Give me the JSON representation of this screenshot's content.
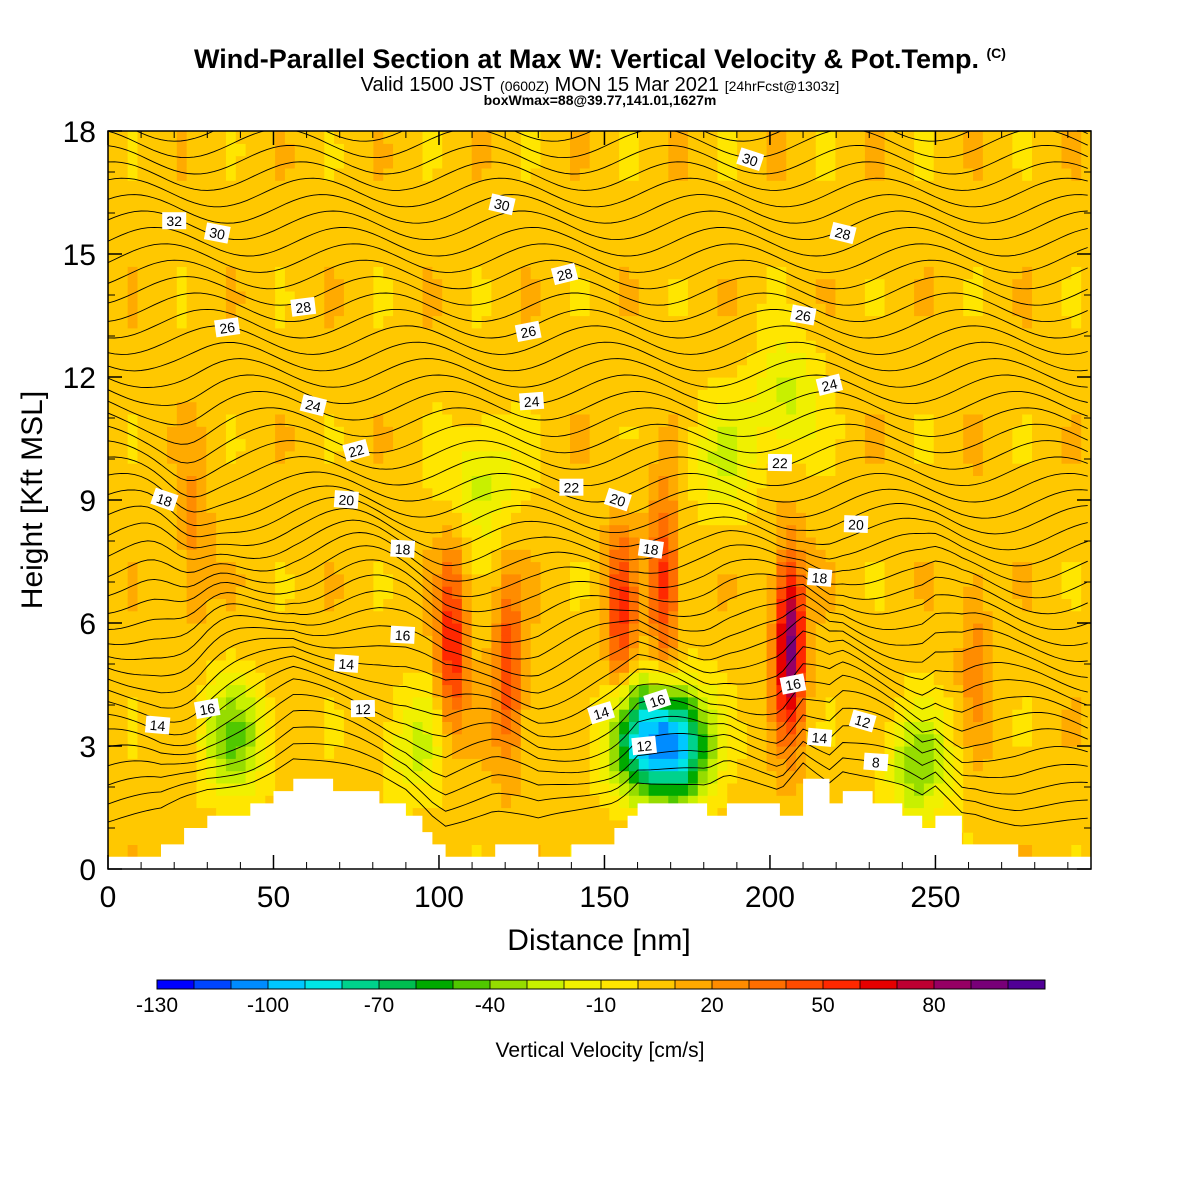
{
  "title": {
    "main": "Wind-Parallel Section at Max W: Vertical Velocity & Pot.Temp.",
    "copyright": "(C)",
    "valid_prefix": "Valid 1500 JST",
    "valid_utc": "(0600Z)",
    "valid_date": "MON 15 Mar 2021",
    "forecast": "[24hrFcst@1303z]",
    "box": "boxWmax=88@39.77,141.01,1627m"
  },
  "colors": {
    "bands": [
      "#0000ff",
      "#0045ff",
      "#008cff",
      "#00c8ff",
      "#00e6e6",
      "#00d28c",
      "#00be50",
      "#00aa00",
      "#50c800",
      "#96dc00",
      "#c8f000",
      "#f0f000",
      "#ffe600",
      "#ffc800",
      "#ffaa00",
      "#ff8c00",
      "#ff6e00",
      "#ff4b00",
      "#ff2800",
      "#e60000",
      "#be0032",
      "#960064",
      "#780078",
      "#500096"
    ],
    "contour": "#000000",
    "terrain": "#ffffff"
  },
  "chart_data": {
    "type": "heatmap",
    "xlabel": "Distance [nm]",
    "ylabel": "Height [Kft MSL]",
    "xlim": [
      0,
      297
    ],
    "ylim": [
      0,
      18
    ],
    "xticks": [
      0,
      50,
      100,
      150,
      200,
      250
    ],
    "yticks": [
      0,
      3,
      6,
      9,
      12,
      15,
      18
    ],
    "colorbar": {
      "label": "Vertical Velocity [cm/s]",
      "min": -130,
      "max": 110,
      "step": 10,
      "tick_labels": [
        -130,
        -100,
        -70,
        -40,
        -10,
        20,
        50,
        80
      ]
    },
    "terrain_kft": [
      [
        0,
        0.3
      ],
      [
        16,
        0.6
      ],
      [
        23,
        1.0
      ],
      [
        30,
        1.3
      ],
      [
        43,
        1.6
      ],
      [
        50,
        1.9
      ],
      [
        56,
        2.2
      ],
      [
        68,
        1.9
      ],
      [
        82,
        1.6
      ],
      [
        90,
        1.3
      ],
      [
        95,
        0.9
      ],
      [
        98,
        0.6
      ],
      [
        102,
        0.3
      ],
      [
        117,
        0.6
      ],
      [
        130,
        0.3
      ],
      [
        140,
        0.6
      ],
      [
        153,
        1.0
      ],
      [
        157,
        1.3
      ],
      [
        160,
        1.6
      ],
      [
        181,
        1.3
      ],
      [
        187,
        1.6
      ],
      [
        203,
        1.3
      ],
      [
        210,
        2.2
      ],
      [
        218,
        1.6
      ],
      [
        222,
        1.9
      ],
      [
        231,
        1.6
      ],
      [
        240,
        1.3
      ],
      [
        246,
        1.0
      ],
      [
        250,
        1.3
      ],
      [
        258,
        0.6
      ],
      [
        262,
        0.6
      ],
      [
        275,
        0.3
      ],
      [
        297,
        0.3
      ]
    ],
    "updrafts": [
      {
        "x": 104,
        "z": 5.5,
        "w": 55
      },
      {
        "x": 121,
        "z": 4.8,
        "w": 45
      },
      {
        "x": 155,
        "z": 6.2,
        "w": 45
      },
      {
        "x": 168,
        "z": 7.0,
        "w": 50
      },
      {
        "x": 206,
        "z": 5.5,
        "w": 88
      },
      {
        "x": 26,
        "z": 8.0,
        "w": 20
      },
      {
        "x": 262,
        "z": 5.5,
        "w": 20
      }
    ],
    "downdrafts": [
      {
        "x": 38,
        "z": 3.2,
        "w": -45
      },
      {
        "x": 172,
        "z": 3.0,
        "w": -100
      },
      {
        "x": 160,
        "z": 3.2,
        "w": -70
      },
      {
        "x": 245,
        "z": 2.5,
        "w": -40
      },
      {
        "x": 113,
        "z": 9.5,
        "w": -30
      },
      {
        "x": 186,
        "z": 10.0,
        "w": -25
      },
      {
        "x": 205,
        "z": 11.5,
        "w": -30
      },
      {
        "x": 93,
        "z": 3.0,
        "w": -25
      }
    ],
    "theta_labels": [
      {
        "value": "32",
        "x": 20,
        "z": 15.8
      },
      {
        "value": "30",
        "x": 33,
        "z": 15.5
      },
      {
        "value": "28",
        "x": 59,
        "z": 13.7
      },
      {
        "value": "26",
        "x": 36,
        "z": 13.2
      },
      {
        "value": "24",
        "x": 62,
        "z": 11.3
      },
      {
        "value": "22",
        "x": 75,
        "z": 10.2
      },
      {
        "value": "20",
        "x": 72,
        "z": 9.0
      },
      {
        "value": "18",
        "x": 17,
        "z": 9.0
      },
      {
        "value": "18",
        "x": 89,
        "z": 7.8
      },
      {
        "value": "16",
        "x": 89,
        "z": 5.7
      },
      {
        "value": "14",
        "x": 72,
        "z": 5.0
      },
      {
        "value": "12",
        "x": 77,
        "z": 3.9
      },
      {
        "value": "16",
        "x": 30,
        "z": 3.9
      },
      {
        "value": "14",
        "x": 15,
        "z": 3.5
      },
      {
        "value": "30",
        "x": 119,
        "z": 16.2
      },
      {
        "value": "28",
        "x": 138,
        "z": 14.5
      },
      {
        "value": "26",
        "x": 127,
        "z": 13.1
      },
      {
        "value": "24",
        "x": 128,
        "z": 11.4
      },
      {
        "value": "22",
        "x": 140,
        "z": 9.3
      },
      {
        "value": "20",
        "x": 154,
        "z": 9.0
      },
      {
        "value": "18",
        "x": 164,
        "z": 7.8
      },
      {
        "value": "14",
        "x": 149,
        "z": 3.8
      },
      {
        "value": "16",
        "x": 166,
        "z": 4.1
      },
      {
        "value": "12",
        "x": 162,
        "z": 3.0
      },
      {
        "value": "30",
        "x": 194,
        "z": 17.3
      },
      {
        "value": "28",
        "x": 222,
        "z": 15.5
      },
      {
        "value": "26",
        "x": 210,
        "z": 13.5
      },
      {
        "value": "24",
        "x": 218,
        "z": 11.8
      },
      {
        "value": "22",
        "x": 203,
        "z": 9.9
      },
      {
        "value": "20",
        "x": 226,
        "z": 8.4
      },
      {
        "value": "18",
        "x": 215,
        "z": 7.1
      },
      {
        "value": "16",
        "x": 207,
        "z": 4.5
      },
      {
        "value": "14",
        "x": 215,
        "z": 3.2
      },
      {
        "value": "12",
        "x": 228,
        "z": 3.6
      },
      {
        "value": "8",
        "x": 232,
        "z": 2.6
      }
    ]
  }
}
